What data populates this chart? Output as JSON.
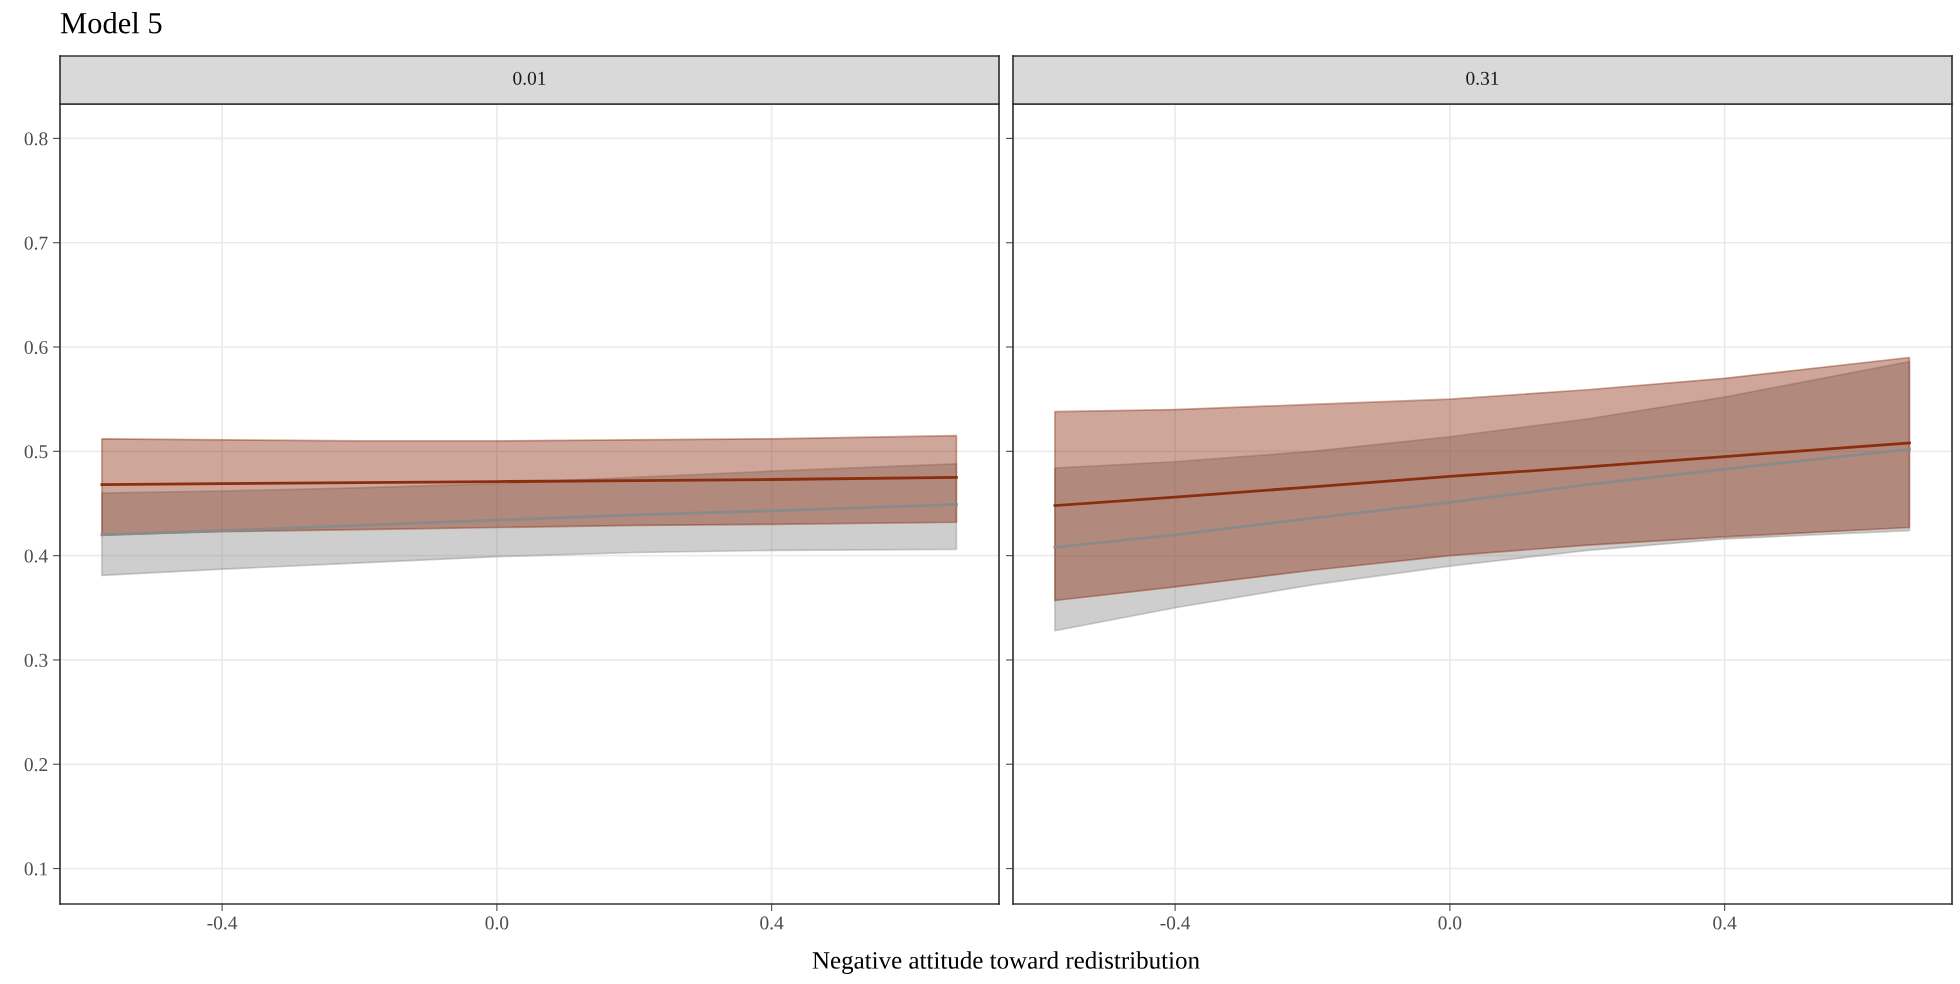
{
  "chart_data": [
    {
      "type": "line",
      "title": "Model 5",
      "subtitle": "0.01",
      "xlabel": "Negative attitude toward redistribution",
      "xlim": [
        -0.636,
        0.731
      ],
      "ylim": [
        0.066,
        0.833
      ],
      "xticks": [
        {
          "value": -0.4,
          "label": "-0.4"
        },
        {
          "value": 0,
          "label": "0.0"
        },
        {
          "value": 0.4,
          "label": "0.4"
        }
      ],
      "yticks": [
        0.1,
        0.2,
        0.3,
        0.4,
        0.5,
        0.6,
        0.7,
        0.8
      ],
      "grid": true,
      "x": [
        -0.575,
        -0.4,
        -0.2,
        0.0,
        0.2,
        0.4,
        0.669
      ],
      "series": [
        {
          "color": "#8a8a8a",
          "values": [
            0.42,
            0.424,
            0.429,
            0.434,
            0.439,
            0.443,
            0.449
          ],
          "lower": [
            0.381,
            0.387,
            0.393,
            0.399,
            0.403,
            0.405,
            0.406
          ],
          "upper": [
            0.46,
            0.462,
            0.465,
            0.469,
            0.475,
            0.481,
            0.488
          ]
        },
        {
          "color": "#8b2e0e",
          "values": [
            0.468,
            0.469,
            0.47,
            0.471,
            0.472,
            0.473,
            0.475
          ],
          "lower": [
            0.42,
            0.423,
            0.425,
            0.427,
            0.429,
            0.43,
            0.432
          ],
          "upper": [
            0.512,
            0.511,
            0.51,
            0.51,
            0.511,
            0.512,
            0.515
          ]
        }
      ]
    },
    {
      "type": "line",
      "subtitle": "0.31",
      "xlim": [
        -0.636,
        0.731
      ],
      "ylim": [
        0.066,
        0.833
      ],
      "xticks": [
        {
          "value": -0.4,
          "label": "-0.4"
        },
        {
          "value": 0,
          "label": "0.0"
        },
        {
          "value": 0.4,
          "label": "0.4"
        }
      ],
      "yticks": [
        0.1,
        0.2,
        0.3,
        0.4,
        0.5,
        0.6,
        0.7,
        0.8
      ],
      "tick_labels": "x",
      "grid": true,
      "x": [
        -0.575,
        -0.4,
        -0.2,
        0.0,
        0.2,
        0.4,
        0.669
      ],
      "series": [
        {
          "color": "#8a8a8a",
          "values": [
            0.408,
            0.42,
            0.436,
            0.451,
            0.468,
            0.483,
            0.502
          ],
          "lower": [
            0.328,
            0.35,
            0.372,
            0.39,
            0.405,
            0.416,
            0.424
          ],
          "upper": [
            0.484,
            0.49,
            0.5,
            0.514,
            0.531,
            0.552,
            0.586
          ]
        },
        {
          "color": "#8b2e0e",
          "values": [
            0.448,
            0.456,
            0.466,
            0.476,
            0.485,
            0.495,
            0.508
          ],
          "lower": [
            0.357,
            0.37,
            0.386,
            0.4,
            0.41,
            0.418,
            0.427
          ],
          "upper": [
            0.538,
            0.54,
            0.545,
            0.55,
            0.559,
            0.57,
            0.59
          ]
        }
      ]
    }
  ]
}
